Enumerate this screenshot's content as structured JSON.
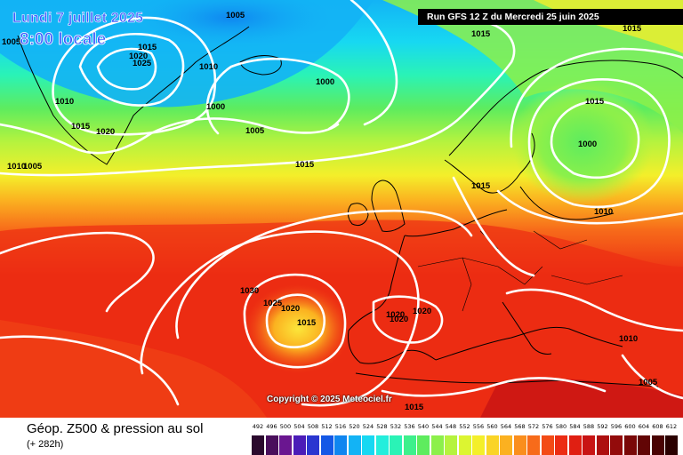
{
  "header": {
    "date": "Lundi 7 juillet 2025",
    "local_time": "8:00 locale",
    "run": "Run GFS 12 Z du Mercredi 25 juin 2025"
  },
  "footer": {
    "field": "Géop. Z500 & pression au sol",
    "lead": "(+ 282h)",
    "copyright": "Copyright © 2025 Meteociel.fr"
  },
  "scale": {
    "values": [
      "492",
      "496",
      "500",
      "504",
      "508",
      "512",
      "516",
      "520",
      "524",
      "528",
      "532",
      "536",
      "540",
      "544",
      "548",
      "552",
      "556",
      "560",
      "564",
      "568",
      "572",
      "576",
      "580",
      "584",
      "588",
      "592",
      "596",
      "600",
      "604",
      "608",
      "612"
    ],
    "colors": [
      "#2b0a2e",
      "#4a0f5c",
      "#6a1690",
      "#4b1cb8",
      "#2a36d0",
      "#1458e6",
      "#0f86f0",
      "#13b3f5",
      "#17d8f2",
      "#23eedc",
      "#2af3b6",
      "#3ef08c",
      "#5eec5e",
      "#8cf04a",
      "#b6f33e",
      "#dcf531",
      "#f4ef2a",
      "#fad426",
      "#fbb120",
      "#fa8e1d",
      "#f76b1a",
      "#f34b16",
      "#ec2c13",
      "#e01f12",
      "#c81414",
      "#ad0f0f",
      "#930b0b",
      "#7a0808",
      "#620505",
      "#4a0303",
      "#2a0000"
    ]
  },
  "isobar_labels": [
    {
      "id": "l1005a",
      "text": "1005"
    },
    {
      "id": "l1005b",
      "text": "1005"
    },
    {
      "id": "l1015a",
      "text": "1015"
    },
    {
      "id": "l1020a",
      "text": "1020"
    },
    {
      "id": "l1025a",
      "text": "1025"
    },
    {
      "id": "l1010a",
      "text": "1010"
    },
    {
      "id": "l1015b",
      "text": "1015"
    },
    {
      "id": "l1000a",
      "text": "1000"
    },
    {
      "id": "l1000b",
      "text": "1000"
    },
    {
      "id": "l1015c",
      "text": "1015"
    },
    {
      "id": "l1005c",
      "text": "1005"
    },
    {
      "id": "l1015d",
      "text": "1015"
    },
    {
      "id": "l1015e",
      "text": "1015"
    },
    {
      "id": "l1010b",
      "text": "1010"
    },
    {
      "id": "l1015f",
      "text": "1015"
    },
    {
      "id": "l1020b",
      "text": "1020"
    },
    {
      "id": "l1010c",
      "text": "1010"
    },
    {
      "id": "l1005d",
      "text": "1005"
    },
    {
      "id": "l1000c",
      "text": "1000"
    },
    {
      "id": "l1010d",
      "text": "1010"
    },
    {
      "id": "l1015g",
      "text": "1015"
    },
    {
      "id": "l1030",
      "text": "1030"
    },
    {
      "id": "l1025b",
      "text": "1025"
    },
    {
      "id": "l1020c",
      "text": "1020"
    },
    {
      "id": "l1015h",
      "text": "1015"
    },
    {
      "id": "l1020d",
      "text": "1020"
    },
    {
      "id": "l1020e",
      "text": "1020"
    },
    {
      "id": "l1020f",
      "text": "1020"
    },
    {
      "id": "l1010e",
      "text": "1010"
    },
    {
      "id": "l1005e",
      "text": "1005"
    },
    {
      "id": "l1015i",
      "text": "1015"
    }
  ]
}
